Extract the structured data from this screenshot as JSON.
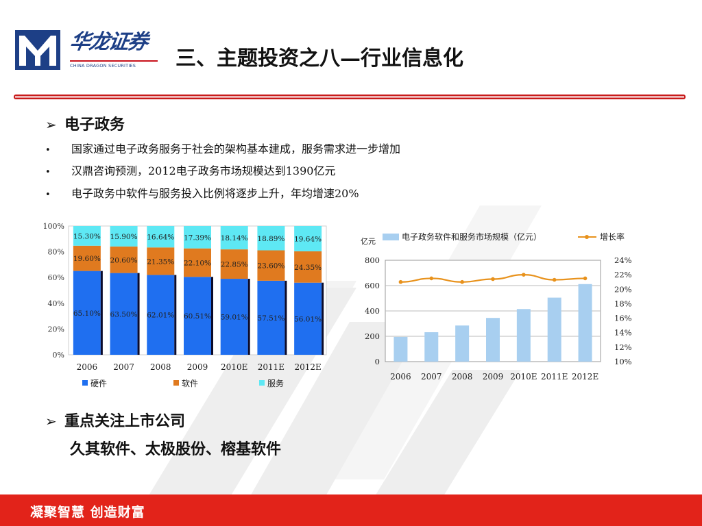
{
  "header": {
    "logo_cn": "华龙证券",
    "logo_en": "CHINA DRAGON SECURITIES",
    "title": "三、主题投资之八—行业信息化"
  },
  "section1": {
    "heading": "电子政务",
    "bullets": [
      "国家通过电子政务服务于社会的架构基本建成，服务需求进一步增加",
      "汉鼎咨询预测，2012电子政务市场规模达到1390亿元",
      "电子政务中软件与服务投入比例将逐步上升，年均增速20%"
    ]
  },
  "section2": {
    "heading": "重点关注上市公司",
    "companies": "久其软件、太极股份、榕基软件"
  },
  "footer": {
    "slogan": "凝聚智慧  创造财富"
  },
  "colors": {
    "hardware": "#1f6ff0",
    "software": "#e07a1f",
    "service": "#5ee8f4",
    "bar_light": "#a8cff0",
    "growth_line": "#e8921c",
    "footer_red": "#e2231a",
    "logo_blue": "#1d3f86"
  },
  "chart_data": [
    {
      "type": "bar",
      "stacked": true,
      "percent": true,
      "categories": [
        "2006",
        "2007",
        "2008",
        "2009",
        "2010E",
        "2011E",
        "2012E"
      ],
      "series": [
        {
          "name": "硬件",
          "values": [
            65.1,
            63.5,
            62.01,
            60.51,
            59.01,
            57.51,
            56.01
          ],
          "labels": [
            "65.10%",
            "63.50%",
            "62.01%",
            "60.51%",
            "59.01%",
            "57.51%",
            "56.01%"
          ]
        },
        {
          "name": "软件",
          "values": [
            19.6,
            20.6,
            21.35,
            22.1,
            22.85,
            23.6,
            24.35
          ],
          "labels": [
            "19.60%",
            "20.60%",
            "21.35%",
            "22.10%",
            "22.85%",
            "23.60%",
            "24.35%"
          ]
        },
        {
          "name": "服务",
          "values": [
            15.3,
            15.9,
            16.64,
            17.39,
            18.14,
            18.89,
            19.64
          ],
          "labels": [
            "15.30%",
            "15.90%",
            "16.64%",
            "17.39%",
            "18.14%",
            "18.89%",
            "19.64%"
          ]
        }
      ],
      "yticks": [
        "0%",
        "20%",
        "40%",
        "60%",
        "80%",
        "100%"
      ],
      "ylim": [
        0,
        100
      ],
      "legend": "bottom"
    },
    {
      "type": "bar",
      "categories": [
        "2006",
        "2007",
        "2008",
        "2009",
        "2010E",
        "2011E",
        "2012E"
      ],
      "series": [
        {
          "name": "电子政务软件和服务市场规模（亿元）",
          "values": [
            195,
            232,
            285,
            345,
            415,
            505,
            612
          ]
        }
      ],
      "line_series": [
        {
          "name": "增长率",
          "values": [
            21.0,
            21.5,
            21.0,
            21.4,
            22.0,
            21.3,
            21.5
          ],
          "axis": "right"
        }
      ],
      "ylabel": "亿元",
      "ylim": [
        0,
        800
      ],
      "yticks": [
        "0",
        "200",
        "400",
        "600",
        "800"
      ],
      "y2lim": [
        10,
        24
      ],
      "y2ticks": [
        "10%",
        "12%",
        "14%",
        "16%",
        "18%",
        "20%",
        "22%",
        "24%"
      ],
      "legend": "top"
    }
  ]
}
